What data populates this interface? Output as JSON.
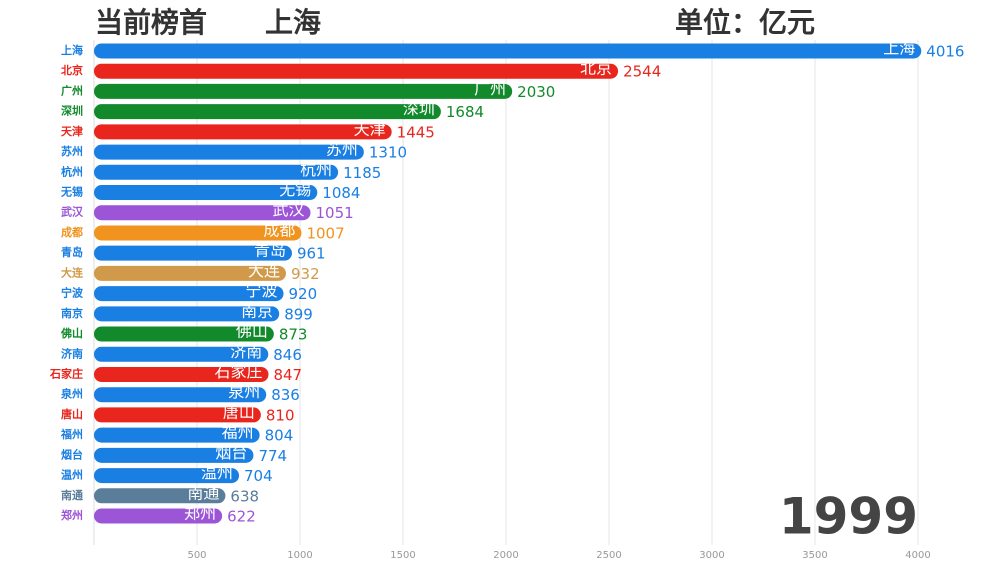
{
  "header": {
    "title": "当前榜首",
    "leader": "上海",
    "unit": "单位：亿元"
  },
  "chart_data": {
    "type": "bar",
    "orientation": "horizontal",
    "categories": [
      "上海",
      "北京",
      "广州",
      "深圳",
      "天津",
      "苏州",
      "杭州",
      "无锡",
      "武汉",
      "成都",
      "青岛",
      "大连",
      "宁波",
      "南京",
      "佛山",
      "济南",
      "石家庄",
      "泉州",
      "唐山",
      "福州",
      "烟台",
      "温州",
      "南通",
      "郑州"
    ],
    "values": [
      4016,
      2544,
      2030,
      1684,
      1445,
      1310,
      1185,
      1084,
      1051,
      1007,
      961,
      932,
      920,
      899,
      873,
      846,
      847,
      836,
      810,
      804,
      774,
      704,
      638,
      622
    ],
    "colors": [
      "#1a7fe3",
      "#e8261d",
      "#128a2c",
      "#128a2c",
      "#e8261d",
      "#1a7fe3",
      "#1a7fe3",
      "#1a7fe3",
      "#9b55d6",
      "#f0931f",
      "#1a7fe3",
      "#d19a4a",
      "#1a7fe3",
      "#1a7fe3",
      "#128a2c",
      "#1a7fe3",
      "#e8261d",
      "#1a7fe3",
      "#e8261d",
      "#1a7fe3",
      "#1a7fe3",
      "#1a7fe3",
      "#5a7d9a",
      "#9b55d6"
    ],
    "xlim": [
      0,
      4000
    ],
    "xticks": [
      500,
      1000,
      1500,
      2000,
      2500,
      3000,
      3500,
      4000
    ],
    "grid": true,
    "year": "1999"
  }
}
